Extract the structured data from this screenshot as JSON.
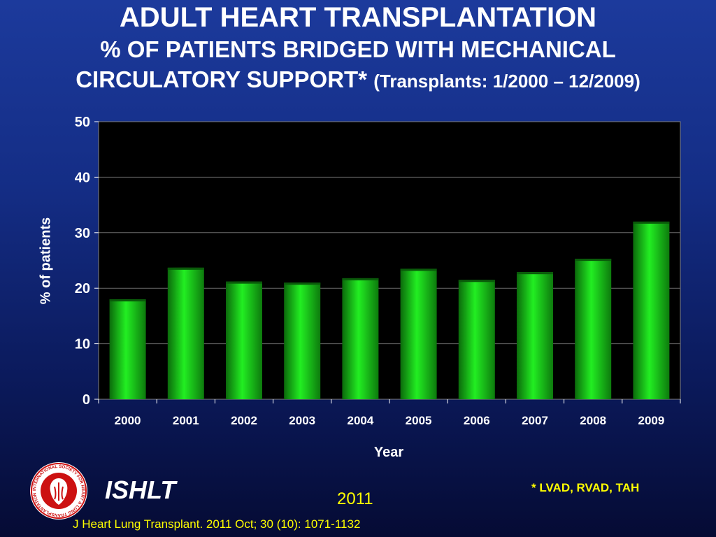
{
  "title": {
    "line1": "ADULT HEART TRANSPLANTATION",
    "line2": "% OF PATIENTS BRIDGED WITH MECHANICAL",
    "line3": "CIRCULATORY SUPPORT*",
    "line3_small": "(Transplants: 1/2000 – 12/2009)"
  },
  "footer": {
    "brand": "ISHLT",
    "year": "2011",
    "footnote": "* LVAD, RVAD, TAH",
    "citation": "J Heart Lung Transplant. 2011 Oct; 30 (10): 1071-1132"
  },
  "logo": {
    "icon": "ishlt-seal-icon",
    "text": "INTERNATIONAL SOCIETY FOR HEART & LUNG TRANSPLANTATION"
  },
  "colors": {
    "bar": "#22ee22",
    "plot_background": "#000000",
    "title_text": "#ffffff",
    "footer_text": "#ffff00"
  },
  "chart_data": {
    "type": "bar",
    "title": "",
    "xlabel": "Year",
    "ylabel": "% of patients",
    "categories": [
      "2000",
      "2001",
      "2002",
      "2003",
      "2004",
      "2005",
      "2006",
      "2007",
      "2008",
      "2009"
    ],
    "values": [
      18.0,
      23.7,
      21.2,
      21.0,
      21.8,
      23.5,
      21.5,
      22.9,
      25.3,
      32.0
    ],
    "ylim": [
      0,
      50
    ],
    "yticks": [
      0,
      10,
      20,
      30,
      40,
      50
    ],
    "grid": true,
    "legend": "none"
  }
}
